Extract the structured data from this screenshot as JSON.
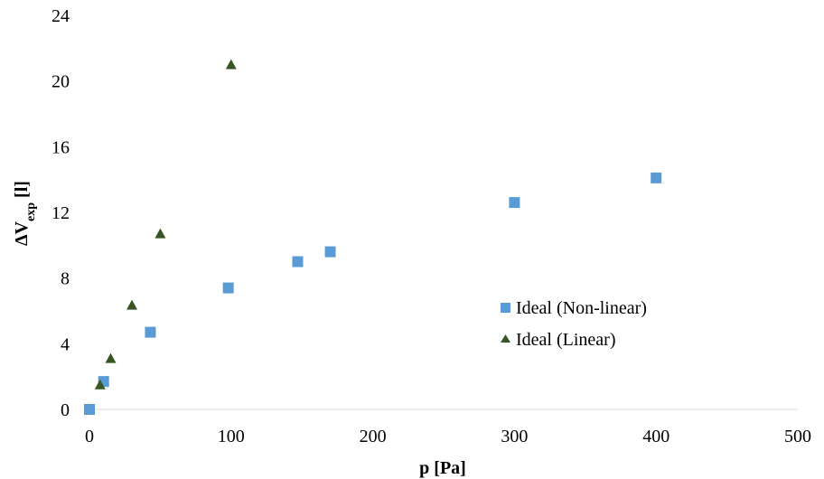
{
  "chart_data": {
    "type": "scatter",
    "title": "",
    "xlabel": "p [Pa]",
    "ylabel": {
      "main": "ΔV",
      "sub": "exp",
      "unit": " [l]"
    },
    "xlim": [
      0,
      500
    ],
    "ylim": [
      0,
      24
    ],
    "xticks": [
      0,
      100,
      200,
      300,
      400,
      500
    ],
    "yticks": [
      0,
      4,
      8,
      12,
      16,
      20,
      24
    ],
    "grid": false,
    "legend_position": "right",
    "series": [
      {
        "name": "Ideal (Non-linear)",
        "marker": "square",
        "color": "#5B9BD5",
        "x": [
          0,
          10,
          43,
          98,
          147,
          170,
          300,
          400
        ],
        "y": [
          0,
          1.7,
          4.7,
          7.4,
          9.0,
          9.6,
          12.6,
          14.1
        ]
      },
      {
        "name": "Ideal (Linear)",
        "marker": "triangle",
        "color": "#375623",
        "x": [
          7.5,
          15,
          30,
          50,
          100
        ],
        "y": [
          1.5,
          3.1,
          6.35,
          10.7,
          21.0
        ]
      }
    ]
  }
}
